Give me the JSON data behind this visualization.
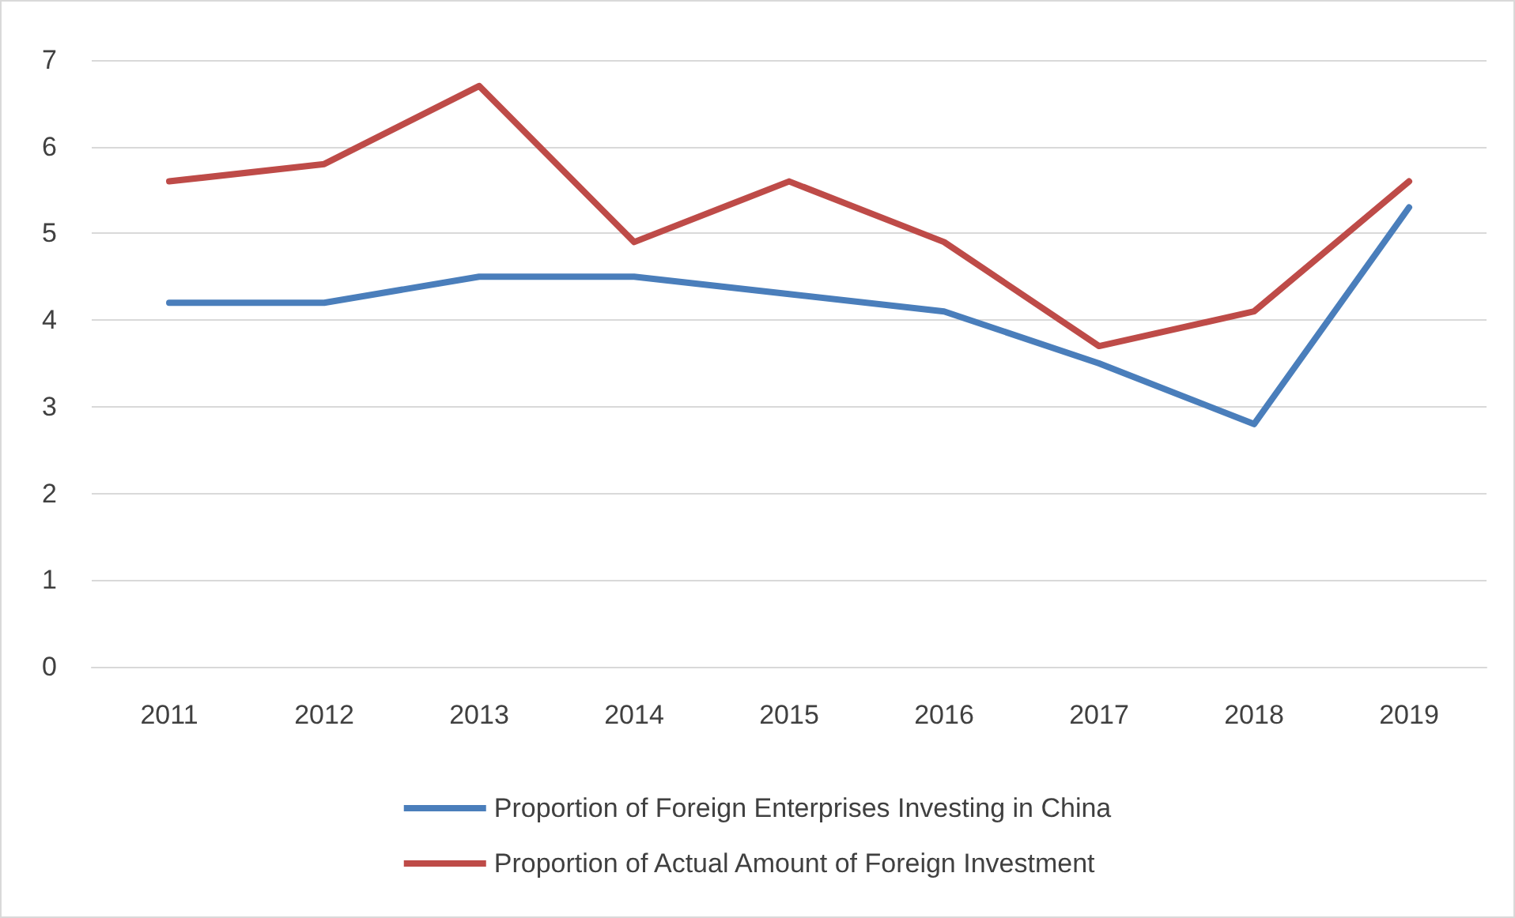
{
  "chart_data": {
    "type": "line",
    "categories": [
      "2011",
      "2012",
      "2013",
      "2014",
      "2015",
      "2016",
      "2017",
      "2018",
      "2019"
    ],
    "series": [
      {
        "name": "Proportion of Foreign Enterprises Investing in China",
        "color": "#4a7ebb",
        "values": [
          4.2,
          4.2,
          4.5,
          4.5,
          4.3,
          4.1,
          3.5,
          2.8,
          5.3
        ]
      },
      {
        "name": "Proportion of Actual Amount of Foreign Investment",
        "color": "#be4b48",
        "values": [
          5.6,
          5.8,
          6.7,
          4.9,
          5.6,
          4.9,
          3.7,
          4.1,
          5.6
        ]
      }
    ],
    "ylim": [
      0,
      7
    ],
    "yticks": [
      0,
      1,
      2,
      3,
      4,
      5,
      6,
      7
    ],
    "grid": "y",
    "legend": "bottom",
    "marker": "none",
    "line_style": "solid"
  }
}
